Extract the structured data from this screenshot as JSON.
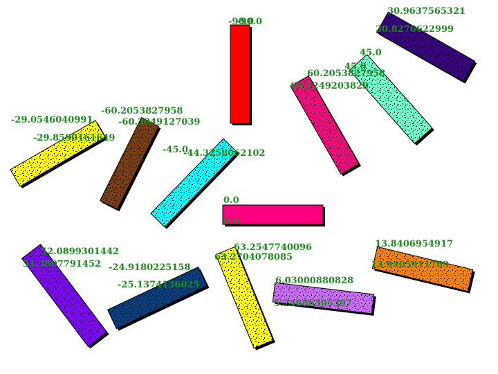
{
  "bars": [
    {
      "id": "red",
      "color": "#ff0000",
      "angle_label": "-90.0",
      "size_label": "-90.0"
    },
    {
      "id": "indigo",
      "color": "#3a0082",
      "angle_label": "30.9637565321",
      "size_label": "30.8276622999"
    },
    {
      "id": "aquamarine",
      "color": "#66ffcc",
      "angle_label": "45.0",
      "size_label": "45.0"
    },
    {
      "id": "pink-right",
      "color": "#ff0080",
      "angle_label": "60.2053827958",
      "size_label": "60.1249203829"
    },
    {
      "id": "brown",
      "color": "#7a3c0a",
      "angle_label": "-60.2053827958",
      "size_label": "-60.3049127039"
    },
    {
      "id": "yellow-left",
      "color": "#ffff00",
      "angle_label": "-29.0546040991",
      "size_label": "-29.8590161649"
    },
    {
      "id": "cyan",
      "color": "#00ffff",
      "angle_label": "-45.0",
      "size_label": "-44.3258062102"
    },
    {
      "id": "pink-center",
      "color": "#ff0080",
      "angle_label": "0.0",
      "size_label": "0.0"
    },
    {
      "id": "violet",
      "color": "#8000ff",
      "angle_label": "52.0899301442",
      "size_label": "51.3807791452"
    },
    {
      "id": "navy",
      "color": "#003f7f",
      "angle_label": "-24.9180225158",
      "size_label": "-25.1374136025"
    },
    {
      "id": "yellow-mid",
      "color": "#ffff00",
      "angle_label": "63.2547740096",
      "size_label": "63.2704078085"
    },
    {
      "id": "lavender",
      "color": "#cc66ff",
      "angle_label": "6.03000880828",
      "size_label": "5.24686305397"
    },
    {
      "id": "orange",
      "color": "#ff8000",
      "angle_label": "13.8406954917",
      "size_label": "13.9405911769"
    }
  ]
}
